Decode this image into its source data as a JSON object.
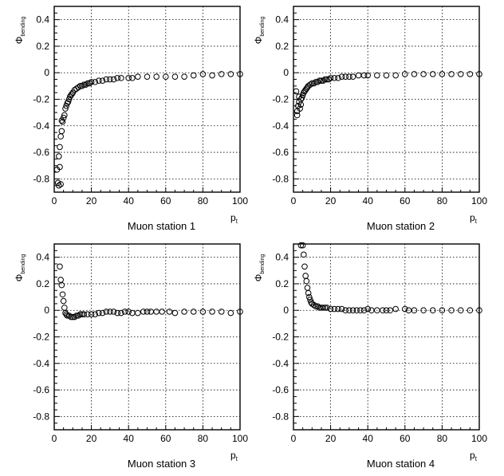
{
  "chart_data": [
    {
      "type": "scatter",
      "title": "Muon station 1",
      "xlabel": "p",
      "xlabel_sub": "t",
      "ylabel": "Φ",
      "ylabel_sub": "bending",
      "xlim": [
        0,
        100
      ],
      "ylim": [
        -0.9,
        0.5
      ],
      "xticks": [
        0,
        20,
        40,
        60,
        80,
        100
      ],
      "yticks": [
        -0.8,
        -0.6,
        -0.4,
        -0.2,
        0,
        0.2,
        0.4
      ],
      "grid": true,
      "marker": "open-circle",
      "x": [
        1.5,
        2,
        2.5,
        2.5,
        3,
        3,
        3.5,
        3.5,
        4,
        4,
        4.5,
        5,
        5.5,
        6,
        6.5,
        7,
        7.5,
        8,
        8.5,
        9,
        9.5,
        10,
        11,
        12,
        13,
        14,
        15,
        16,
        17,
        18,
        19,
        20,
        22,
        24,
        26,
        28,
        30,
        32,
        34,
        36,
        40,
        42,
        45,
        50,
        55,
        60,
        65,
        70,
        75,
        80,
        85,
        90,
        95,
        100
      ],
      "y": [
        -0.73,
        -0.83,
        -0.85,
        -0.63,
        -0.56,
        -0.71,
        -0.48,
        -0.84,
        -0.44,
        -0.36,
        -0.37,
        -0.34,
        -0.32,
        -0.27,
        -0.25,
        -0.23,
        -0.22,
        -0.2,
        -0.18,
        -0.17,
        -0.16,
        -0.15,
        -0.13,
        -0.12,
        -0.11,
        -0.1,
        -0.1,
        -0.09,
        -0.09,
        -0.08,
        -0.08,
        -0.07,
        -0.07,
        -0.06,
        -0.06,
        -0.05,
        -0.05,
        -0.05,
        -0.04,
        -0.04,
        -0.04,
        -0.04,
        -0.03,
        -0.03,
        -0.03,
        -0.03,
        -0.03,
        -0.03,
        -0.02,
        -0.01,
        -0.02,
        -0.01,
        -0.01,
        -0.01
      ]
    },
    {
      "type": "scatter",
      "title": "Muon station 2",
      "xlabel": "p",
      "xlabel_sub": "t",
      "ylabel": "Φ",
      "ylabel_sub": "bending",
      "xlim": [
        0,
        100
      ],
      "ylim": [
        -0.9,
        0.5
      ],
      "xticks": [
        0,
        20,
        40,
        60,
        80,
        100
      ],
      "yticks": [
        -0.8,
        -0.6,
        -0.4,
        -0.2,
        0,
        0.2,
        0.4
      ],
      "grid": true,
      "marker": "open-circle",
      "x": [
        1.5,
        2,
        2,
        2.5,
        3,
        3,
        3.5,
        4,
        4,
        4.5,
        5,
        5.5,
        6,
        6.5,
        7,
        7.5,
        8,
        9,
        10,
        11,
        12,
        13,
        14,
        15,
        16,
        17,
        18,
        19,
        20,
        22,
        24,
        26,
        28,
        30,
        32,
        35,
        38,
        40,
        45,
        50,
        55,
        60,
        65,
        70,
        75,
        80,
        85,
        90,
        95,
        100
      ],
      "y": [
        -0.14,
        -0.32,
        -0.29,
        -0.25,
        -0.22,
        -0.18,
        -0.27,
        -0.2,
        -0.24,
        -0.19,
        -0.17,
        -0.15,
        -0.14,
        -0.13,
        -0.12,
        -0.11,
        -0.1,
        -0.09,
        -0.08,
        -0.08,
        -0.07,
        -0.07,
        -0.06,
        -0.06,
        -0.06,
        -0.05,
        -0.05,
        -0.05,
        -0.04,
        -0.04,
        -0.04,
        -0.03,
        -0.03,
        -0.03,
        -0.03,
        -0.02,
        -0.02,
        -0.02,
        -0.02,
        -0.02,
        -0.02,
        -0.01,
        -0.01,
        -0.01,
        -0.01,
        -0.01,
        -0.01,
        -0.01,
        -0.01,
        -0.01
      ]
    },
    {
      "type": "scatter",
      "title": "Muon station 3",
      "xlabel": "p",
      "xlabel_sub": "t",
      "ylabel": "Φ",
      "ylabel_sub": "bending",
      "xlim": [
        0,
        100
      ],
      "ylim": [
        -0.9,
        0.5
      ],
      "xticks": [
        0,
        20,
        40,
        60,
        80,
        100
      ],
      "yticks": [
        -0.8,
        -0.6,
        -0.4,
        -0.2,
        0,
        0.2,
        0.4
      ],
      "grid": true,
      "marker": "open-circle",
      "x": [
        3,
        3.5,
        4,
        4.5,
        5,
        5.5,
        6,
        6.5,
        7,
        8,
        9,
        10,
        11,
        12,
        13,
        14,
        15,
        16,
        18,
        20,
        22,
        24,
        26,
        28,
        30,
        32,
        34,
        36,
        38,
        40,
        42,
        45,
        48,
        50,
        52,
        55,
        58,
        62,
        65,
        70,
        75,
        80,
        85,
        90,
        95,
        100
      ],
      "y": [
        0.33,
        0.23,
        0.19,
        0.12,
        0.07,
        0.02,
        -0.02,
        -0.03,
        -0.04,
        -0.04,
        -0.05,
        -0.05,
        -0.05,
        -0.04,
        -0.04,
        -0.03,
        -0.03,
        -0.03,
        -0.03,
        -0.03,
        -0.03,
        -0.02,
        -0.02,
        -0.01,
        -0.01,
        -0.01,
        -0.02,
        -0.02,
        -0.01,
        -0.01,
        -0.02,
        -0.02,
        -0.01,
        -0.01,
        -0.01,
        -0.01,
        -0.01,
        -0.01,
        -0.02,
        -0.01,
        -0.01,
        -0.01,
        -0.01,
        -0.01,
        -0.02,
        -0.01
      ]
    },
    {
      "type": "scatter",
      "title": "Muon station 4",
      "xlabel": "p",
      "xlabel_sub": "t",
      "ylabel": "Φ",
      "ylabel_sub": "bending",
      "xlim": [
        0,
        100
      ],
      "ylim": [
        -0.9,
        0.5
      ],
      "xticks": [
        0,
        20,
        40,
        60,
        80,
        100
      ],
      "yticks": [
        -0.8,
        -0.6,
        -0.4,
        -0.2,
        0,
        0.2,
        0.4
      ],
      "grid": true,
      "marker": "open-circle",
      "x": [
        4,
        5,
        5.5,
        6,
        6.5,
        7,
        7.5,
        8,
        8.5,
        9,
        9.5,
        10,
        11,
        12,
        13,
        14,
        15,
        16,
        17,
        18,
        20,
        22,
        24,
        26,
        28,
        30,
        32,
        34,
        36,
        38,
        40,
        42,
        45,
        48,
        50,
        52,
        55,
        60,
        62,
        65,
        70,
        75,
        80,
        85,
        90,
        95,
        100
      ],
      "y": [
        0.49,
        0.49,
        0.42,
        0.33,
        0.26,
        0.22,
        0.17,
        0.13,
        0.1,
        0.08,
        0.06,
        0.05,
        0.04,
        0.03,
        0.03,
        0.02,
        0.02,
        0.02,
        0.02,
        0.02,
        0.01,
        0.01,
        0.01,
        0.01,
        0.0,
        0.0,
        0.0,
        0.0,
        0.0,
        0.0,
        0.01,
        0.0,
        0.0,
        0.0,
        0.0,
        0.0,
        0.01,
        0.01,
        0.0,
        0.0,
        0.0,
        0.0,
        0.0,
        0.0,
        0.0,
        0.0,
        0.0
      ]
    }
  ]
}
